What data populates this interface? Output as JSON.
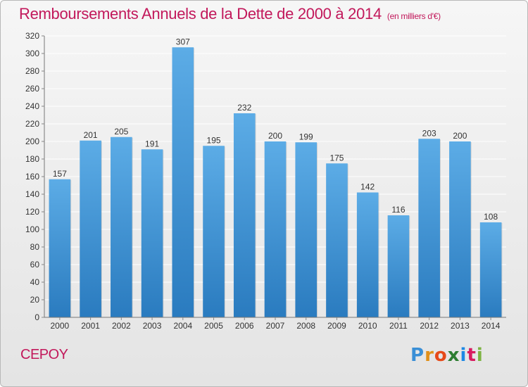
{
  "title": "Remboursements Annuels de la Dette de 2000 à 2014",
  "unit_note": "(en milliers d'€)",
  "commune": "CEPOY",
  "logo": "Proxiti",
  "colors": {
    "title": "#c2185b",
    "bar_top": "#5cace6",
    "bar_bottom": "#2a7bbf",
    "grid": "#ffffff"
  },
  "chart_data": {
    "type": "bar",
    "title": "Remboursements Annuels de la Dette de 2000 à 2014",
    "xlabel": "",
    "ylabel": "",
    "ylim": [
      0,
      320
    ],
    "yticks": [
      0,
      20,
      40,
      60,
      80,
      100,
      120,
      140,
      160,
      180,
      200,
      220,
      240,
      260,
      280,
      300,
      320
    ],
    "grid": true,
    "categories": [
      "2000",
      "2001",
      "2002",
      "2003",
      "2004",
      "2005",
      "2006",
      "2007",
      "2008",
      "2009",
      "2010",
      "2011",
      "2012",
      "2013",
      "2014"
    ],
    "values": [
      157,
      201,
      205,
      191,
      307,
      195,
      232,
      200,
      199,
      175,
      142,
      116,
      203,
      200,
      108
    ]
  }
}
